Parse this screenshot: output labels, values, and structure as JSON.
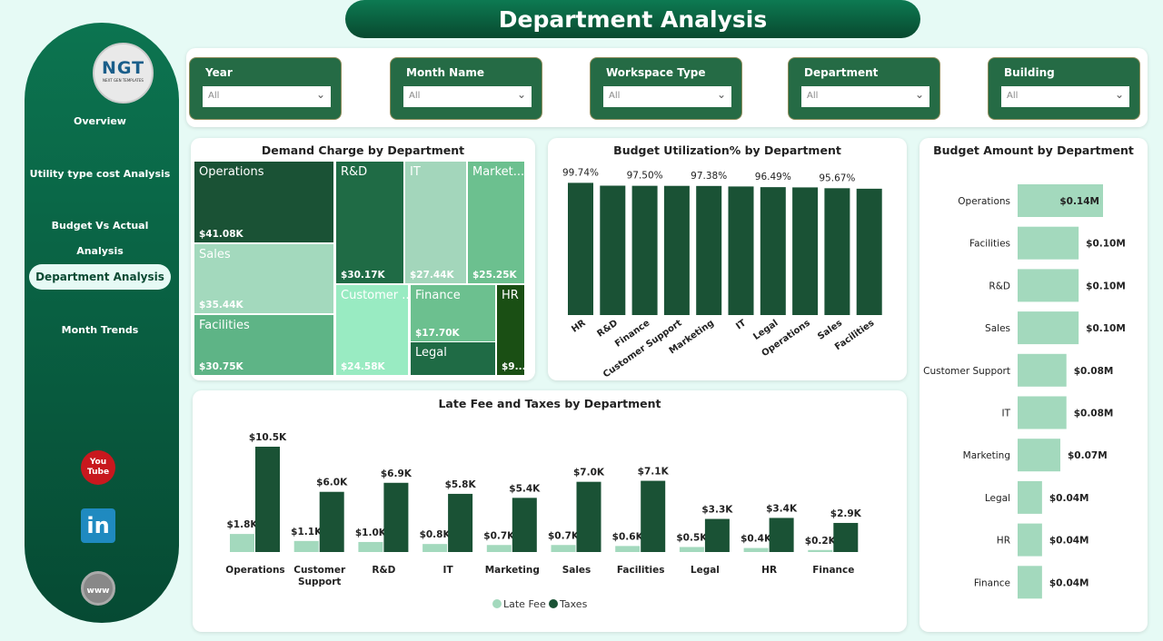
{
  "header": {
    "title": "Department Analysis"
  },
  "sidebar": {
    "logo_text": "NGT",
    "logo_subtext": "NEXT GEN TEMPLATES",
    "items": [
      {
        "label": "Overview"
      },
      {
        "label": "Utility type cost Analysis"
      },
      {
        "label": "Budget Vs Actual Analysis"
      },
      {
        "label": "Department Analysis",
        "active": true
      },
      {
        "label": "Month Trends"
      }
    ],
    "social": [
      {
        "icon": "youtube-icon",
        "label": "You Tube"
      },
      {
        "icon": "linkedin-icon",
        "label": "in"
      },
      {
        "icon": "globe-www-icon",
        "label": "www"
      }
    ]
  },
  "filters": [
    {
      "label": "Year",
      "value": "All"
    },
    {
      "label": "Month Name",
      "value": "All"
    },
    {
      "label": "Workspace Type",
      "value": "All"
    },
    {
      "label": "Department",
      "value": "All"
    },
    {
      "label": "Building",
      "value": "All"
    }
  ],
  "colors": {
    "dark": "#1a5235",
    "light": "#a3d9bd",
    "accent": "#0c7450"
  },
  "chart_data": [
    {
      "type": "treemap",
      "title": "Demand Charge by Department",
      "items": [
        {
          "label": "Operations",
          "value_label": "$41.08K",
          "value": 41.08,
          "color": "#1a5235"
        },
        {
          "label": "Sales",
          "value_label": "$35.44K",
          "value": 35.44,
          "color": "#a3d9bd"
        },
        {
          "label": "Facilities",
          "value_label": "$30.75K",
          "value": 30.75,
          "color": "#5eb486"
        },
        {
          "label": "R&D",
          "value_label": "$30.17K",
          "value": 30.17,
          "color": "#1f6b45"
        },
        {
          "label": "IT",
          "value_label": "$27.44K",
          "value": 27.44,
          "color": "#a3d6bb"
        },
        {
          "label": "Market...",
          "value_label": "$25.25K",
          "value": 25.25,
          "color": "#6cc08f"
        },
        {
          "label": "Customer ...",
          "value_label": "$24.58K",
          "value": 24.58,
          "color": "#99ebc2"
        },
        {
          "label": "Finance",
          "value_label": "$17.70K",
          "value": 17.7,
          "color": "#6cc08f"
        },
        {
          "label": "Legal",
          "value_label": "",
          "value": 14.0,
          "color": "#1f6b45"
        },
        {
          "label": "HR",
          "value_label": "$9....",
          "value": 9.5,
          "color": "#1a4f14"
        }
      ]
    },
    {
      "type": "bar",
      "title": "Budget Utilization% by Department",
      "categories": [
        "HR",
        "R&D",
        "Finance",
        "Customer Support",
        "Marketing",
        "IT",
        "Legal",
        "Operations",
        "Sales",
        "Facilities"
      ],
      "values": [
        99.74,
        97.6,
        97.5,
        97.45,
        97.38,
        97.0,
        96.49,
        96.3,
        95.67,
        95.3
      ],
      "data_labels": [
        "99.74%",
        "",
        "97.50%",
        "",
        "97.38%",
        "",
        "96.49%",
        "",
        "95.67%",
        ""
      ],
      "ylim": [
        0,
        100
      ],
      "color": "#1a5235"
    },
    {
      "type": "bar",
      "orientation": "horizontal",
      "title": "Budget Amount by Department",
      "categories": [
        "Operations",
        "Facilities",
        "R&D",
        "Sales",
        "Customer Support",
        "IT",
        "Marketing",
        "Legal",
        "HR",
        "Finance"
      ],
      "values": [
        0.14,
        0.1,
        0.1,
        0.1,
        0.08,
        0.08,
        0.07,
        0.04,
        0.04,
        0.04
      ],
      "data_labels": [
        "$0.14M",
        "$0.10M",
        "$0.10M",
        "$0.10M",
        "$0.08M",
        "$0.08M",
        "$0.07M",
        "$0.04M",
        "$0.04M",
        "$0.04M"
      ],
      "color": "#a3d9bd"
    },
    {
      "type": "bar",
      "title": "Late Fee and Taxes by Department",
      "categories": [
        "Operations",
        "Customer Support",
        "R&D",
        "IT",
        "Marketing",
        "Sales",
        "Facilities",
        "Legal",
        "HR",
        "Finance"
      ],
      "series": [
        {
          "name": "Late Fee",
          "color": "#a3d9bd",
          "values": [
            1.8,
            1.1,
            1.0,
            0.8,
            0.7,
            0.7,
            0.6,
            0.5,
            0.4,
            0.2
          ],
          "data_labels": [
            "$1.8K",
            "$1.1K",
            "$1.0K",
            "$0.8K",
            "$0.7K",
            "$0.7K",
            "$0.6K",
            "$0.5K",
            "$0.4K",
            "$0.2K"
          ]
        },
        {
          "name": "Taxes",
          "color": "#1a5235",
          "values": [
            10.5,
            6.0,
            6.9,
            5.8,
            5.4,
            7.0,
            7.1,
            3.3,
            3.4,
            2.9
          ],
          "data_labels": [
            "$10.5K",
            "$6.0K",
            "$6.9K",
            "$5.8K",
            "$5.4K",
            "$7.0K",
            "$7.1K",
            "$3.3K",
            "$3.4K",
            "$2.9K"
          ]
        }
      ],
      "legend": "bottom"
    }
  ]
}
